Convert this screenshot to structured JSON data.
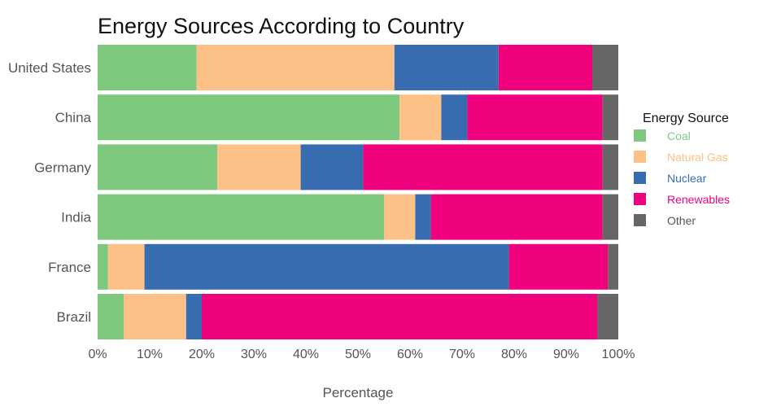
{
  "chart_data": {
    "type": "bar",
    "orientation": "horizontal",
    "stacked": true,
    "title": "Energy Sources According to Country",
    "xlabel": "Percentage",
    "ylabel": "",
    "xlim": [
      0,
      100
    ],
    "x_ticks": [
      "0%",
      "10%",
      "20%",
      "30%",
      "40%",
      "50%",
      "60%",
      "70%",
      "80%",
      "90%",
      "100%"
    ],
    "grid": false,
    "legend": {
      "title": "Energy Source",
      "placement": "right"
    },
    "categories": [
      "United States",
      "China",
      "Germany",
      "India",
      "France",
      "Brazil"
    ],
    "series": [
      {
        "name": "Coal",
        "color": "#7fc97f",
        "values": [
          19,
          58,
          23,
          55,
          2,
          5
        ]
      },
      {
        "name": "Natural Gas",
        "color": "#fdc086",
        "values": [
          38,
          8,
          16,
          6,
          7,
          12
        ]
      },
      {
        "name": "Nuclear",
        "color": "#386cb0",
        "values": [
          20,
          5,
          12,
          3,
          70,
          3
        ]
      },
      {
        "name": "Renewables",
        "color": "#f0027f",
        "values": [
          18,
          26,
          46,
          33,
          19,
          76
        ]
      },
      {
        "name": "Other",
        "color": "#666666",
        "values": [
          5,
          3,
          3,
          3,
          2,
          4
        ]
      }
    ]
  }
}
